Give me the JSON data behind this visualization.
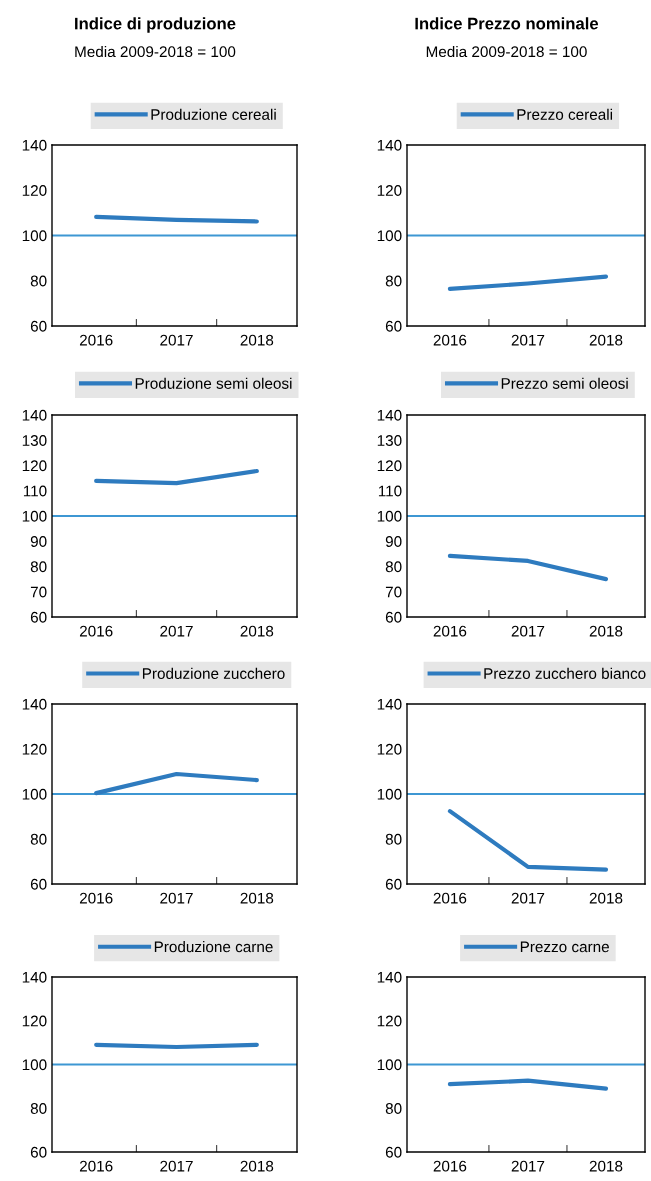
{
  "chart_data": [
    {
      "type": "line",
      "title": "Indice di produzione",
      "subtitle": "Media 2009-2018 = 100",
      "categories": [
        "2016",
        "2017",
        "2018"
      ],
      "series": [
        {
          "name": "Produzione cereali",
          "color": "#2e7bbf",
          "values": [
            108.2,
            106.9,
            106.2
          ]
        }
      ],
      "ylim": [
        60,
        140
      ],
      "yticks": [
        60,
        80,
        100,
        120,
        140
      ],
      "ref_lines": [
        {
          "axis": "y",
          "value": 100,
          "color": "#3d97d3"
        }
      ],
      "legend": "top",
      "grid": false
    },
    {
      "type": "line",
      "title": "Indice Prezzo nominale",
      "subtitle": "Media 2009-2018 = 100",
      "categories": [
        "2016",
        "2017",
        "2018"
      ],
      "series": [
        {
          "name": "Prezzo cereali",
          "color": "#2e7bbf",
          "values": [
            76.4,
            78.8,
            81.8
          ]
        }
      ],
      "ylim": [
        60,
        140
      ],
      "yticks": [
        60,
        80,
        100,
        120,
        140
      ],
      "ref_lines": [
        {
          "axis": "y",
          "value": 100,
          "color": "#3d97d3"
        }
      ],
      "legend": "top",
      "grid": false
    },
    {
      "type": "line",
      "categories": [
        "2016",
        "2017",
        "2018"
      ],
      "series": [
        {
          "name": "Produzione semi oleosi",
          "color": "#2e7bbf",
          "values": [
            113.9,
            113.0,
            117.8
          ]
        }
      ],
      "ylim": [
        60,
        140
      ],
      "yticks": [
        60,
        70,
        80,
        90,
        100,
        110,
        120,
        130,
        140
      ],
      "ref_lines": [
        {
          "axis": "y",
          "value": 100,
          "color": "#3d97d3"
        }
      ],
      "legend": "top",
      "grid": false
    },
    {
      "type": "line",
      "categories": [
        "2016",
        "2017",
        "2018"
      ],
      "series": [
        {
          "name": "Prezzo semi oleosi",
          "color": "#2e7bbf",
          "values": [
            84.2,
            82.2,
            75.0
          ]
        }
      ],
      "ylim": [
        60,
        140
      ],
      "yticks": [
        60,
        70,
        80,
        90,
        100,
        110,
        120,
        130,
        140
      ],
      "ref_lines": [
        {
          "axis": "y",
          "value": 100,
          "color": "#3d97d3"
        }
      ],
      "legend": "top",
      "grid": false
    },
    {
      "type": "line",
      "categories": [
        "2016",
        "2017",
        "2018"
      ],
      "series": [
        {
          "name": "Produzione zucchero",
          "color": "#2e7bbf",
          "values": [
            100.4,
            108.9,
            106.2
          ]
        }
      ],
      "ylim": [
        60,
        140
      ],
      "yticks": [
        60,
        80,
        100,
        120,
        140
      ],
      "ref_lines": [
        {
          "axis": "y",
          "value": 100,
          "color": "#3d97d3"
        }
      ],
      "legend": "top",
      "grid": false
    },
    {
      "type": "line",
      "categories": [
        "2016",
        "2017",
        "2018"
      ],
      "series": [
        {
          "name": "Prezzo zucchero bianco",
          "color": "#2e7bbf",
          "values": [
            92.4,
            67.6,
            66.4
          ]
        }
      ],
      "ylim": [
        60,
        140
      ],
      "yticks": [
        60,
        80,
        100,
        120,
        140
      ],
      "ref_lines": [
        {
          "axis": "y",
          "value": 100,
          "color": "#3d97d3"
        }
      ],
      "legend": "top",
      "grid": false
    },
    {
      "type": "line",
      "categories": [
        "2016",
        "2017",
        "2018"
      ],
      "series": [
        {
          "name": "Produzione carne",
          "color": "#2e7bbf",
          "values": [
            109.0,
            108.0,
            109.0
          ]
        }
      ],
      "ylim": [
        60,
        140
      ],
      "yticks": [
        60,
        80,
        100,
        120,
        140
      ],
      "ref_lines": [
        {
          "axis": "y",
          "value": 100,
          "color": "#3d97d3"
        }
      ],
      "legend": "top",
      "grid": false
    },
    {
      "type": "line",
      "categories": [
        "2016",
        "2017",
        "2018"
      ],
      "series": [
        {
          "name": "Prezzo carne",
          "color": "#2e7bbf",
          "values": [
            91.0,
            92.6,
            89.0
          ]
        }
      ],
      "ylim": [
        60,
        140
      ],
      "yticks": [
        60,
        80,
        100,
        120,
        140
      ],
      "ref_lines": [
        {
          "axis": "y",
          "value": 100,
          "color": "#3d97d3"
        }
      ],
      "legend": "top",
      "grid": false
    }
  ]
}
